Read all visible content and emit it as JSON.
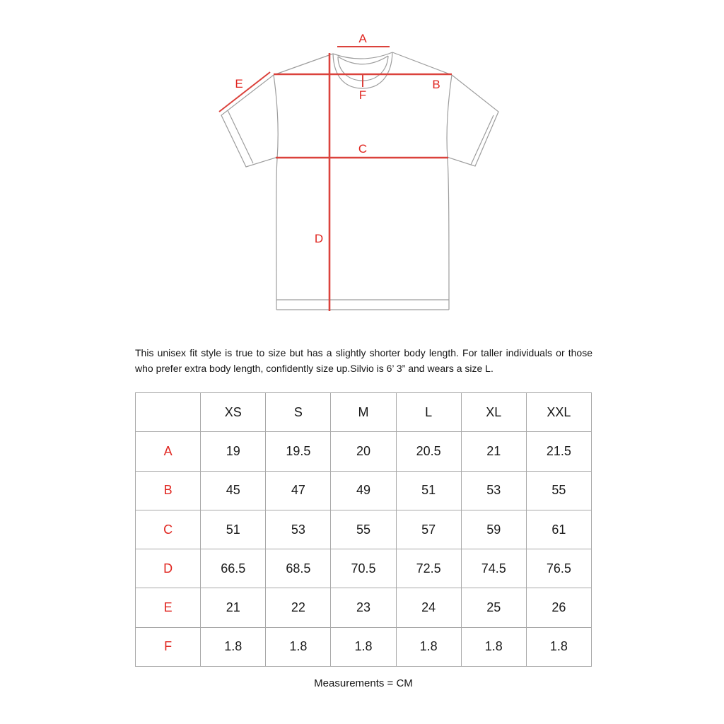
{
  "colors": {
    "accent_red": "#e02620",
    "measure_line_red": "#db423c",
    "shirt_outline_gray": "#9d9d9d",
    "table_border_gray": "#a8a8a8"
  },
  "diagram": {
    "labels": {
      "A": "A",
      "B": "B",
      "C": "C",
      "D": "D",
      "E": "E",
      "F": "F"
    }
  },
  "description": "This unisex fit style is true to size but has a slightly shorter body length. For taller individuals or those who prefer extra body length, confidently size up.Silvio is 6’ 3” and wears a size L.",
  "table": {
    "columns": [
      "XS",
      "S",
      "M",
      "L",
      "XL",
      "XXL"
    ],
    "rows": [
      {
        "label": "A",
        "values": [
          "19",
          "19.5",
          "20",
          "20.5",
          "21",
          "21.5"
        ]
      },
      {
        "label": "B",
        "values": [
          "45",
          "47",
          "49",
          "51",
          "53",
          "55"
        ]
      },
      {
        "label": "C",
        "values": [
          "51",
          "53",
          "55",
          "57",
          "59",
          "61"
        ]
      },
      {
        "label": "D",
        "values": [
          "66.5",
          "68.5",
          "70.5",
          "72.5",
          "74.5",
          "76.5"
        ]
      },
      {
        "label": "E",
        "values": [
          "21",
          "22",
          "23",
          "24",
          "25",
          "26"
        ]
      },
      {
        "label": "F",
        "values": [
          "1.8",
          "1.8",
          "1.8",
          "1.8",
          "1.8",
          "1.8"
        ]
      }
    ]
  },
  "footer": {
    "note": "Measurements = CM"
  }
}
